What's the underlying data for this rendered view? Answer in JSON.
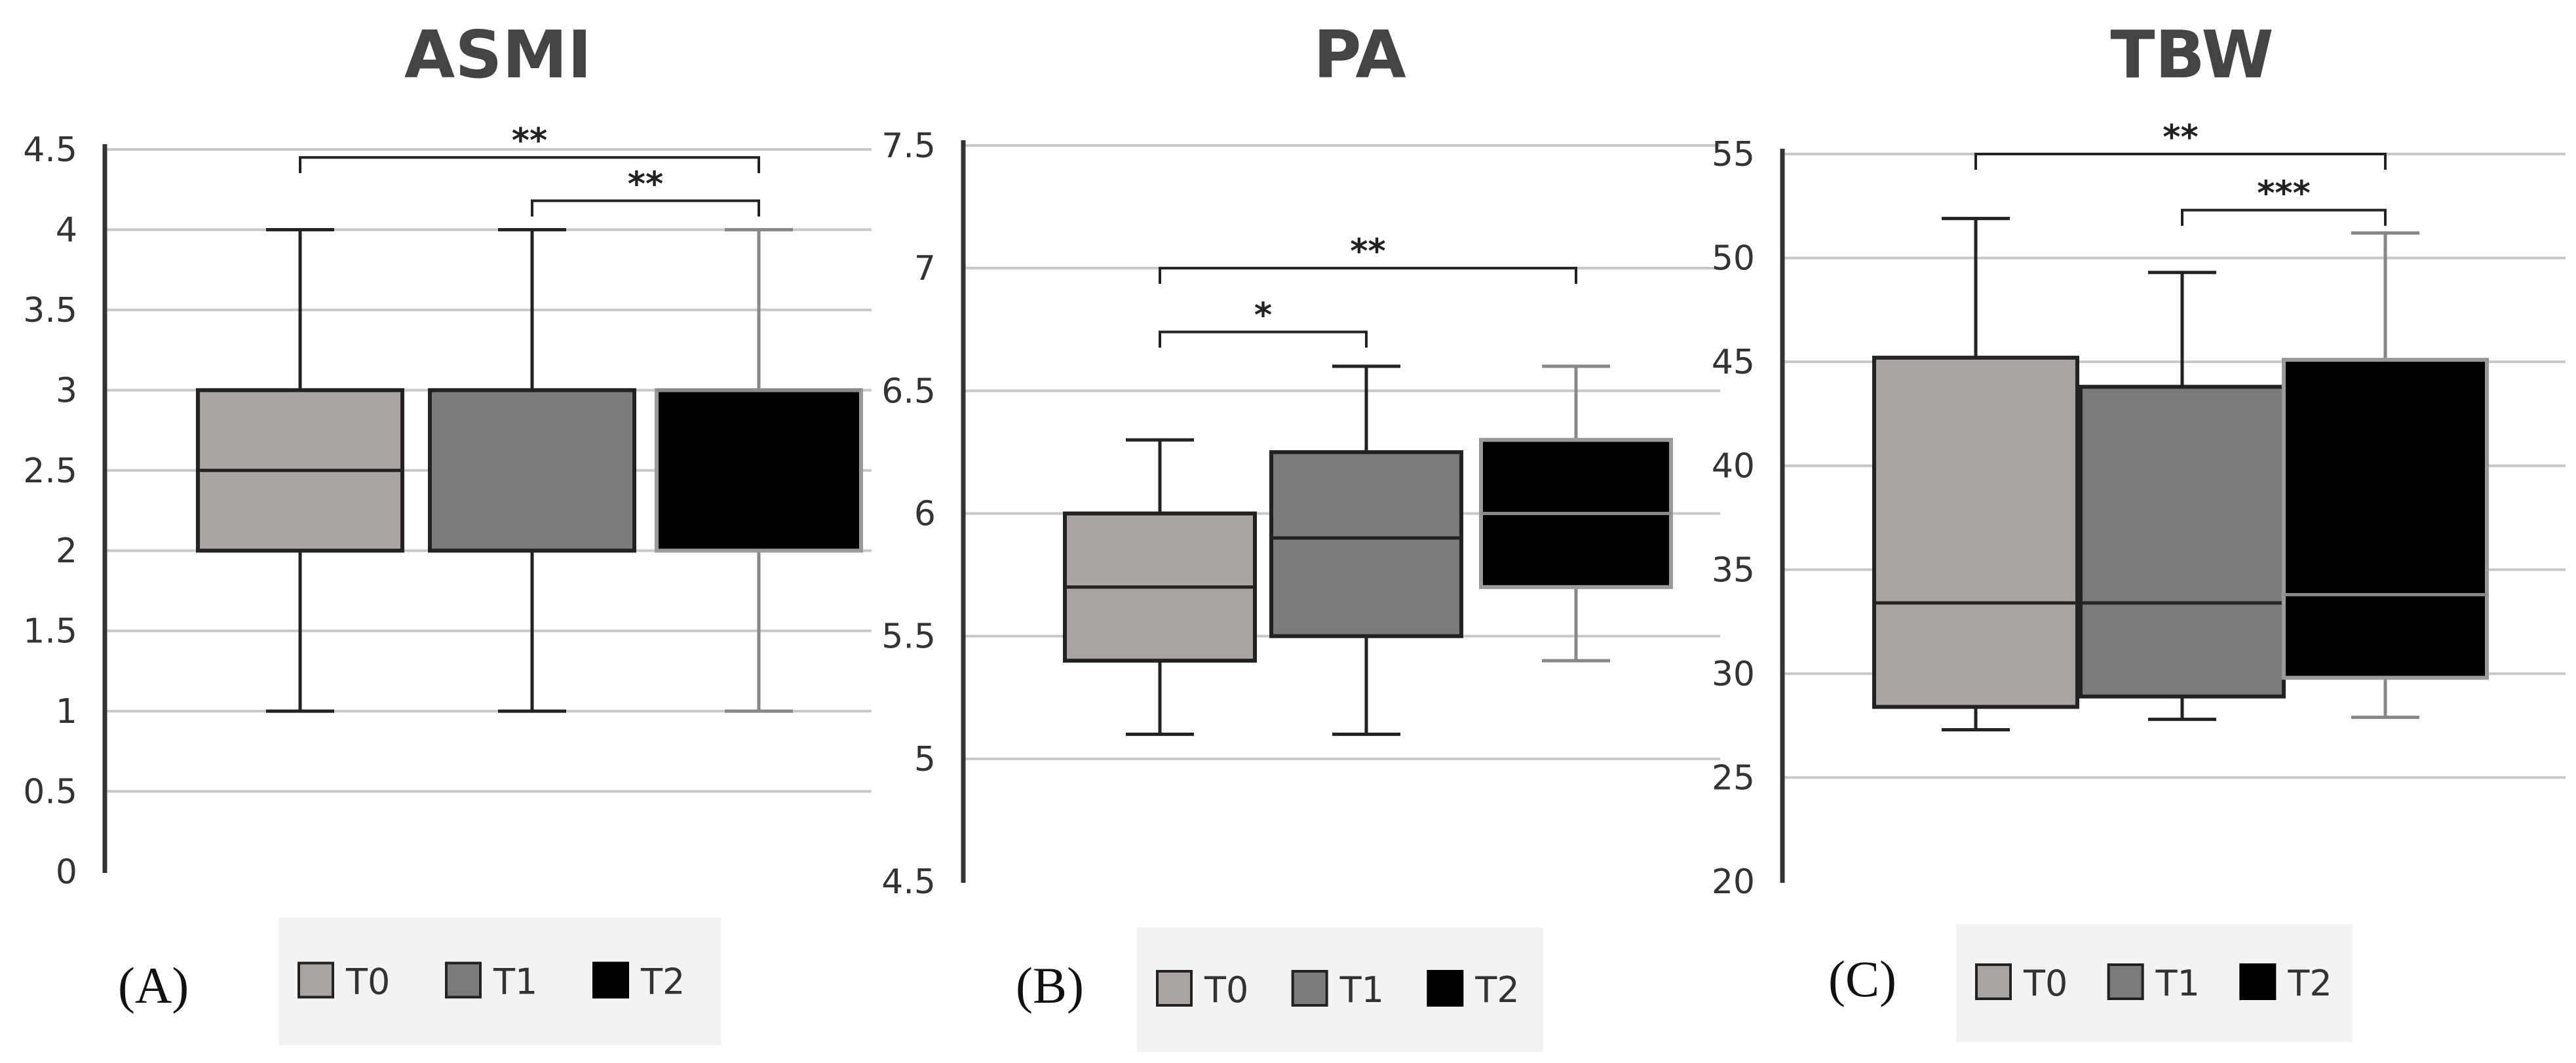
{
  "figure": {
    "panels": [
      "(A)",
      "(B)",
      "(C)"
    ]
  },
  "chart_data": [
    {
      "type": "box",
      "panel_label": "(A)",
      "title": "ASMI",
      "xlabel": "",
      "ylabel": "",
      "ylim": [
        0,
        4.5
      ],
      "yticks": [
        "0",
        "0.5",
        "1",
        "1.5",
        "2",
        "2.5",
        "3",
        "3.5",
        "4",
        "4.5"
      ],
      "grid": true,
      "legend": [
        "T0",
        "T1",
        "T2"
      ],
      "legend_position": "bottom",
      "series": [
        {
          "name": "T0",
          "min": 1,
          "q1": 2,
          "median": 2.5,
          "q3": 3,
          "max": 4,
          "color": "#aaa5a3"
        },
        {
          "name": "T1",
          "min": 1,
          "q1": 2,
          "median": 3,
          "q3": 3,
          "max": 4,
          "color": "#7b7b7b"
        },
        {
          "name": "T2",
          "min": 1,
          "q1": 2,
          "median": 3,
          "q3": 3,
          "max": 4,
          "color": "#000000"
        }
      ],
      "significance": [
        {
          "from": "T0",
          "to": "T2",
          "label": "**",
          "y": 4.45
        },
        {
          "from": "T1",
          "to": "T2",
          "label": "**",
          "y": 4.18
        }
      ]
    },
    {
      "type": "box",
      "panel_label": "(B)",
      "title": "PA",
      "xlabel": "",
      "ylabel": "",
      "ylim": [
        4.5,
        7.5
      ],
      "yticks": [
        "4.5",
        "5",
        "5.5",
        "6",
        "6.5",
        "7",
        "7.5"
      ],
      "grid": true,
      "legend": [
        "T0",
        "T1",
        "T2"
      ],
      "legend_position": "bottom",
      "series": [
        {
          "name": "T0",
          "min": 5.1,
          "q1": 5.4,
          "median": 5.7,
          "q3": 6.0,
          "max": 6.3,
          "color": "#aaa5a3"
        },
        {
          "name": "T1",
          "min": 5.1,
          "q1": 5.5,
          "median": 5.9,
          "q3": 6.25,
          "max": 6.6,
          "color": "#7b7b7b"
        },
        {
          "name": "T2",
          "min": 5.4,
          "q1": 5.7,
          "median": 6.0,
          "q3": 6.3,
          "max": 6.6,
          "color": "#000000"
        }
      ],
      "significance": [
        {
          "from": "T0",
          "to": "T2",
          "label": "**",
          "y": 7.0
        },
        {
          "from": "T0",
          "to": "T1",
          "label": "*",
          "y": 6.74
        }
      ]
    },
    {
      "type": "box",
      "panel_label": "(C)",
      "title": "TBW",
      "xlabel": "",
      "ylabel": "",
      "ylim": [
        20,
        55
      ],
      "yticks": [
        "20",
        "25",
        "30",
        "35",
        "40",
        "45",
        "50",
        "55"
      ],
      "grid": true,
      "legend": [
        "T0",
        "T1",
        "T2"
      ],
      "legend_position": "bottom",
      "series": [
        {
          "name": "T0",
          "min": 27.3,
          "q1": 28.4,
          "median": 33.4,
          "q3": 45.2,
          "max": 51.9,
          "color": "#aaa5a3"
        },
        {
          "name": "T1",
          "min": 27.8,
          "q1": 28.9,
          "median": 33.4,
          "q3": 43.8,
          "max": 49.3,
          "color": "#7b7b7b"
        },
        {
          "name": "T2",
          "min": 27.9,
          "q1": 29.8,
          "median": 33.8,
          "q3": 45.1,
          "max": 51.2,
          "color": "#000000"
        }
      ],
      "significance": [
        {
          "from": "T0",
          "to": "T2",
          "label": "**",
          "y": 55.0
        },
        {
          "from": "T1",
          "to": "T2",
          "label": "***",
          "y": 52.3
        }
      ]
    }
  ]
}
